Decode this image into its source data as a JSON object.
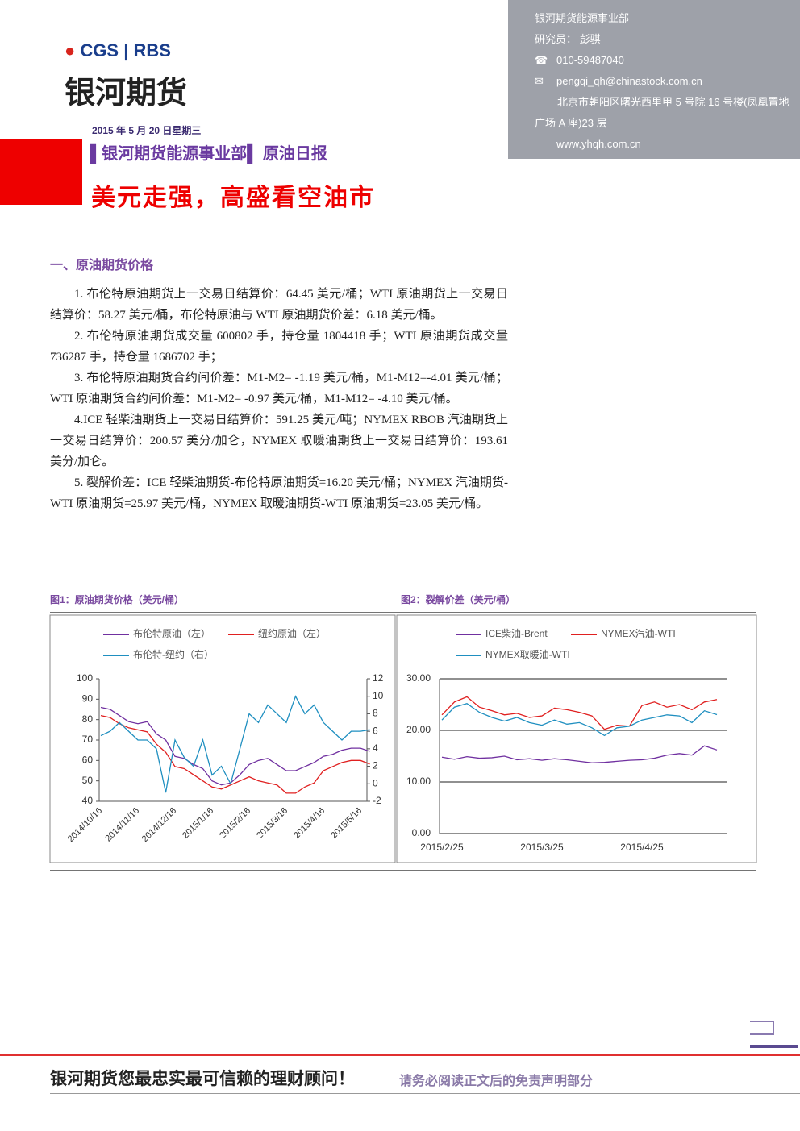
{
  "header": {
    "logo_brand": "CGS",
    "logo_partner": "RBS",
    "company": "银河期货"
  },
  "contact": {
    "department": "银河期货能源事业部",
    "researcher": "研究员： 彭骐",
    "phone": "010-59487040",
    "email": "pengqi_qh@chinastock.com.cn",
    "address": "北京市朝阳区曙光西里甲 5 号院 16 号楼(凤凰置地广场 A 座)23 层",
    "website": "www.yhqh.com.cn"
  },
  "report": {
    "date": "2015 年 5 月 20 日星期三",
    "department": "银河期货能源事业部",
    "type": "原油日报",
    "headline": "美元走强，高盛看空油市"
  },
  "section": {
    "title": "一、原油期货价格",
    "paragraphs": [
      "1. 布伦特原油期货上一交易日结算价：64.45 美元/桶；WTI 原油期货上一交易日结算价：58.27 美元/桶，布伦特原油与 WTI 原油期货价差：6.18 美元/桶。",
      "2. 布伦特原油期货成交量 600802 手，持仓量 1804418 手；WTI 原油期货成交量 736287 手，持仓量 1686702 手；",
      "3. 布伦特原油期货合约间价差：M1-M2= -1.19 美元/桶，M1-M12=-4.01 美元/桶；WTI 原油期货合约间价差：M1-M2= -0.97 美元/桶，M1-M12= -4.10 美元/桶。",
      "4.ICE 轻柴油期货上一交易日结算价：591.25 美元/吨；NYMEX RBOB 汽油期货上一交易日结算价：200.57 美分/加仑，NYMEX 取暖油期货上一交易日结算价：193.61 美分/加仑。",
      "5. 裂解价差：ICE 轻柴油期货-布伦特原油期货=16.20 美元/桶；NYMEX 汽油期货-WTI 原油期货=25.97 美元/桶，NYMEX 取暖油期货-WTI 原油期货=23.05 美元/桶。"
    ]
  },
  "chart_data": [
    {
      "type": "line",
      "title": "图1：原油期货价格（美元/桶）",
      "grid": false,
      "categories": [
        "2014/10/16",
        null,
        null,
        null,
        "2014/11/16",
        null,
        null,
        null,
        "2014/12/16",
        null,
        null,
        null,
        "2015/1/16",
        null,
        null,
        null,
        "2015/2/16",
        null,
        null,
        null,
        "2015/3/16",
        null,
        null,
        null,
        "2015/4/16",
        null,
        null,
        null,
        "2015/5/16",
        null
      ],
      "ylim": [
        40,
        100
      ],
      "yticks": [
        40,
        50,
        60,
        70,
        80,
        90,
        100
      ],
      "y2lim": [
        -2,
        12
      ],
      "y2ticks": [
        -2,
        0,
        2,
        4,
        6,
        8,
        10,
        12
      ],
      "series": [
        {
          "name": "布伦特原油（左）",
          "color": "#7030a0",
          "values": [
            86,
            85,
            82,
            79,
            78,
            79,
            73,
            70,
            62,
            61,
            58,
            56,
            50,
            48,
            49,
            53,
            58,
            60,
            61,
            58,
            55,
            55,
            57,
            59,
            62,
            63,
            65,
            66,
            66,
            64.45
          ]
        },
        {
          "name": "纽约原油（左）",
          "color": "#e02020",
          "values": [
            82,
            81,
            78,
            76,
            75,
            74,
            68,
            64,
            57,
            56,
            53,
            50,
            47,
            46,
            48,
            50,
            52,
            50,
            49,
            48,
            44,
            44,
            47,
            49,
            55,
            57,
            59,
            60,
            60,
            58.27
          ]
        },
        {
          "name": "布伦特-纽约（右）",
          "color": "#1f8fc0",
          "axis": "y2",
          "values": [
            5.5,
            6,
            7,
            6,
            5,
            5,
            4,
            -1,
            5,
            3,
            2,
            5,
            1,
            2,
            0,
            4,
            8,
            7,
            9,
            8,
            7,
            10,
            8,
            9,
            7,
            6,
            5,
            6,
            6,
            6.18
          ]
        }
      ]
    },
    {
      "type": "line",
      "title": "图2：裂解价差（美元/桶）",
      "grid": true,
      "categories": [
        "2015/2/25",
        null,
        null,
        null,
        null,
        null,
        null,
        null,
        "2015/3/25",
        null,
        null,
        null,
        null,
        null,
        null,
        null,
        "2015/4/25",
        null,
        null,
        null,
        null,
        null,
        null
      ],
      "ylim": [
        0,
        30
      ],
      "yticks": [
        {
          "value": 0,
          "label": "0.00"
        },
        {
          "value": 10,
          "label": "10.00"
        },
        {
          "value": 20,
          "label": "20.00"
        },
        {
          "value": 30,
          "label": "30.00"
        }
      ],
      "series": [
        {
          "name": "ICE柴油-Brent",
          "color": "#7030a0",
          "values": [
            14.8,
            14.4,
            14.9,
            14.6,
            14.7,
            15.0,
            14.3,
            14.5,
            14.2,
            14.5,
            14.3,
            14.0,
            13.7,
            13.8,
            14.0,
            14.2,
            14.3,
            14.6,
            15.2,
            15.5,
            15.2,
            17.0,
            16.2
          ]
        },
        {
          "name": "NYMEX汽油-WTI",
          "color": "#e02020",
          "values": [
            23,
            25.5,
            26.5,
            24.5,
            23.8,
            23,
            23.3,
            22.5,
            22.8,
            24.3,
            24.0,
            23.5,
            22.8,
            20.2,
            21.0,
            20.8,
            24.8,
            25.5,
            24.5,
            25.0,
            24.0,
            25.5,
            25.97
          ]
        },
        {
          "name": "NYMEX取暖油-WTI",
          "color": "#1f8fc0",
          "values": [
            22,
            24.5,
            25.2,
            23.5,
            22.5,
            21.8,
            22.5,
            21.5,
            21.0,
            22.0,
            21.2,
            21.5,
            20.5,
            19.0,
            20.5,
            20.8,
            22.0,
            22.5,
            23,
            22.8,
            21.5,
            23.8,
            23.05
          ]
        }
      ]
    }
  ],
  "footer": {
    "slogan": "银河期货您最忠实最可信赖的理财顾问！",
    "disclaimer": "请务必阅读正文后的免责声明部分"
  }
}
